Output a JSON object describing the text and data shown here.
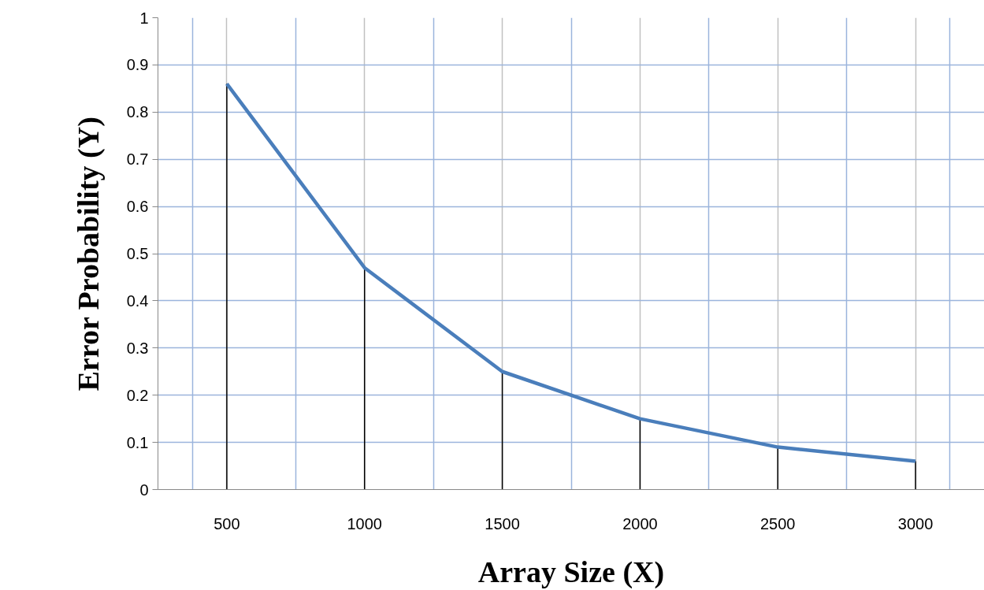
{
  "chart_data": {
    "type": "line",
    "xlabel": "Array Size (X)",
    "ylabel": "Error Probability (Y)",
    "x": [
      500,
      1000,
      1500,
      2000,
      2500,
      3000
    ],
    "series": [
      {
        "color": "#4a7ebb",
        "values": [
          0.86,
          0.47,
          0.25,
          0.15,
          0.09,
          0.06
        ],
        "errors": [
          [
            0.86,
            0
          ],
          [
            0.47,
            0
          ],
          [
            0.25,
            0
          ],
          [
            0.15,
            0
          ],
          [
            0.09,
            0
          ],
          [
            0.06,
            0
          ]
        ]
      }
    ],
    "xlim": [
      250,
      3250
    ],
    "xticks": [
      500,
      1000,
      1500,
      2000,
      2500,
      3000
    ],
    "ylim": [
      0,
      1
    ],
    "yticks": [
      0,
      0.1,
      0.2,
      0.3,
      0.4,
      0.5,
      0.6,
      0.7,
      0.8,
      0.9,
      1
    ],
    "grid": true,
    "marker": "none",
    "line_style": "solid"
  }
}
